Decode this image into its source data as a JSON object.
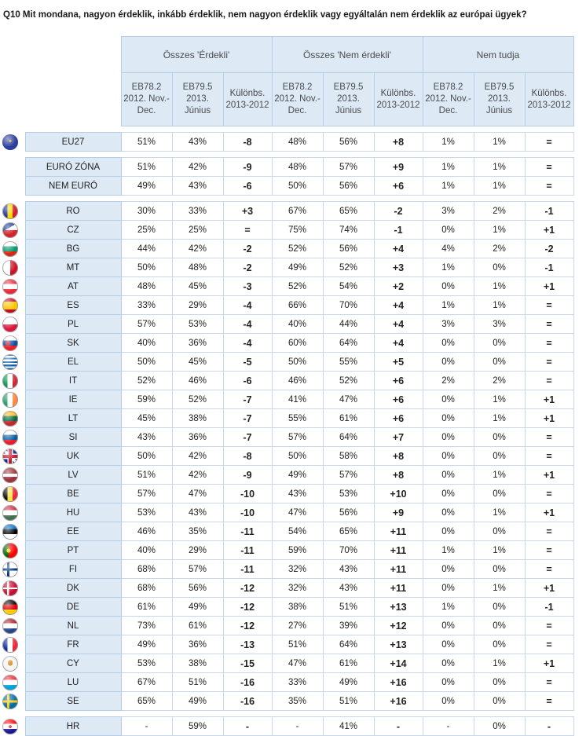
{
  "title": "Q10 Mit mondana, nagyon érdeklik, inkább érdeklik, nem nagyon érdeklik vagy egyáltalán nem érdeklik az európai ügyek?",
  "groups": [
    "Összes 'Érdekli'",
    "Összes 'Nem érdekli'",
    "Nem tudja"
  ],
  "subheaders": [
    "EB78.2 2012. Nov.-Dec.",
    "EB79.5 2013. Június",
    "Különbs. 2013-2012"
  ],
  "sections": [
    [
      {
        "name": "EU27",
        "flag": "eu-flag-icon",
        "v": [
          "51%",
          "43%",
          "-8",
          "48%",
          "56%",
          "+8",
          "1%",
          "1%",
          "="
        ]
      }
    ],
    [
      {
        "name": "EURÓ ZÓNA",
        "flag": "",
        "v": [
          "51%",
          "42%",
          "-9",
          "48%",
          "57%",
          "+9",
          "1%",
          "1%",
          "="
        ]
      },
      {
        "name": "NEM EURÓ",
        "flag": "",
        "v": [
          "49%",
          "43%",
          "-6",
          "50%",
          "56%",
          "+6",
          "1%",
          "1%",
          "="
        ]
      }
    ],
    [
      {
        "name": "RO",
        "flag": "ro-flag-icon",
        "v": [
          "30%",
          "33%",
          "+3",
          "67%",
          "65%",
          "-2",
          "3%",
          "2%",
          "-1"
        ]
      },
      {
        "name": "CZ",
        "flag": "cz-flag-icon",
        "v": [
          "25%",
          "25%",
          "=",
          "75%",
          "74%",
          "-1",
          "0%",
          "1%",
          "+1"
        ]
      },
      {
        "name": "BG",
        "flag": "bg-flag-icon",
        "v": [
          "44%",
          "42%",
          "-2",
          "52%",
          "56%",
          "+4",
          "4%",
          "2%",
          "-2"
        ]
      },
      {
        "name": "MT",
        "flag": "mt-flag-icon",
        "v": [
          "50%",
          "48%",
          "-2",
          "49%",
          "52%",
          "+3",
          "1%",
          "0%",
          "-1"
        ]
      },
      {
        "name": "AT",
        "flag": "at-flag-icon",
        "v": [
          "48%",
          "45%",
          "-3",
          "52%",
          "54%",
          "+2",
          "0%",
          "1%",
          "+1"
        ]
      },
      {
        "name": "ES",
        "flag": "es-flag-icon",
        "v": [
          "33%",
          "29%",
          "-4",
          "66%",
          "70%",
          "+4",
          "1%",
          "1%",
          "="
        ]
      },
      {
        "name": "PL",
        "flag": "pl-flag-icon",
        "v": [
          "57%",
          "53%",
          "-4",
          "40%",
          "44%",
          "+4",
          "3%",
          "3%",
          "="
        ]
      },
      {
        "name": "SK",
        "flag": "sk-flag-icon",
        "v": [
          "40%",
          "36%",
          "-4",
          "60%",
          "64%",
          "+4",
          "0%",
          "0%",
          "="
        ]
      },
      {
        "name": "EL",
        "flag": "el-flag-icon",
        "v": [
          "50%",
          "45%",
          "-5",
          "50%",
          "55%",
          "+5",
          "0%",
          "0%",
          "="
        ]
      },
      {
        "name": "IT",
        "flag": "it-flag-icon",
        "v": [
          "52%",
          "46%",
          "-6",
          "46%",
          "52%",
          "+6",
          "2%",
          "2%",
          "="
        ]
      },
      {
        "name": "IE",
        "flag": "ie-flag-icon",
        "v": [
          "59%",
          "52%",
          "-7",
          "41%",
          "47%",
          "+6",
          "0%",
          "1%",
          "+1"
        ]
      },
      {
        "name": "LT",
        "flag": "lt-flag-icon",
        "v": [
          "45%",
          "38%",
          "-7",
          "55%",
          "61%",
          "+6",
          "0%",
          "1%",
          "+1"
        ]
      },
      {
        "name": "SI",
        "flag": "si-flag-icon",
        "v": [
          "43%",
          "36%",
          "-7",
          "57%",
          "64%",
          "+7",
          "0%",
          "0%",
          "="
        ]
      },
      {
        "name": "UK",
        "flag": "uk-flag-icon",
        "v": [
          "50%",
          "42%",
          "-8",
          "50%",
          "58%",
          "+8",
          "0%",
          "0%",
          "="
        ]
      },
      {
        "name": "LV",
        "flag": "lv-flag-icon",
        "v": [
          "51%",
          "42%",
          "-9",
          "49%",
          "57%",
          "+8",
          "0%",
          "1%",
          "+1"
        ]
      },
      {
        "name": "BE",
        "flag": "be-flag-icon",
        "v": [
          "57%",
          "47%",
          "-10",
          "43%",
          "53%",
          "+10",
          "0%",
          "0%",
          "="
        ]
      },
      {
        "name": "HU",
        "flag": "hu-flag-icon",
        "v": [
          "53%",
          "43%",
          "-10",
          "47%",
          "56%",
          "+9",
          "0%",
          "1%",
          "+1"
        ]
      },
      {
        "name": "EE",
        "flag": "ee-flag-icon",
        "v": [
          "46%",
          "35%",
          "-11",
          "54%",
          "65%",
          "+11",
          "0%",
          "0%",
          "="
        ]
      },
      {
        "name": "PT",
        "flag": "pt-flag-icon",
        "v": [
          "40%",
          "29%",
          "-11",
          "59%",
          "70%",
          "+11",
          "1%",
          "1%",
          "="
        ]
      },
      {
        "name": "FI",
        "flag": "fi-flag-icon",
        "v": [
          "68%",
          "57%",
          "-11",
          "32%",
          "43%",
          "+11",
          "0%",
          "0%",
          "="
        ]
      },
      {
        "name": "DK",
        "flag": "dk-flag-icon",
        "v": [
          "68%",
          "56%",
          "-12",
          "32%",
          "43%",
          "+11",
          "0%",
          "1%",
          "+1"
        ]
      },
      {
        "name": "DE",
        "flag": "de-flag-icon",
        "v": [
          "61%",
          "49%",
          "-12",
          "38%",
          "51%",
          "+13",
          "1%",
          "0%",
          "-1"
        ]
      },
      {
        "name": "NL",
        "flag": "nl-flag-icon",
        "v": [
          "73%",
          "61%",
          "-12",
          "27%",
          "39%",
          "+12",
          "0%",
          "0%",
          "="
        ]
      },
      {
        "name": "FR",
        "flag": "fr-flag-icon",
        "v": [
          "49%",
          "36%",
          "-13",
          "51%",
          "64%",
          "+13",
          "0%",
          "0%",
          "="
        ]
      },
      {
        "name": "CY",
        "flag": "cy-flag-icon",
        "v": [
          "53%",
          "38%",
          "-15",
          "47%",
          "61%",
          "+14",
          "0%",
          "1%",
          "+1"
        ]
      },
      {
        "name": "LU",
        "flag": "lu-flag-icon",
        "v": [
          "67%",
          "51%",
          "-16",
          "33%",
          "49%",
          "+16",
          "0%",
          "0%",
          "="
        ]
      },
      {
        "name": "SE",
        "flag": "se-flag-icon",
        "v": [
          "65%",
          "49%",
          "-16",
          "35%",
          "51%",
          "+16",
          "0%",
          "0%",
          "="
        ]
      }
    ],
    [
      {
        "name": "HR",
        "flag": "hr-flag-icon",
        "v": [
          "-",
          "59%",
          "-",
          "-",
          "41%",
          "-",
          "-",
          "0%",
          "-"
        ]
      }
    ]
  ]
}
